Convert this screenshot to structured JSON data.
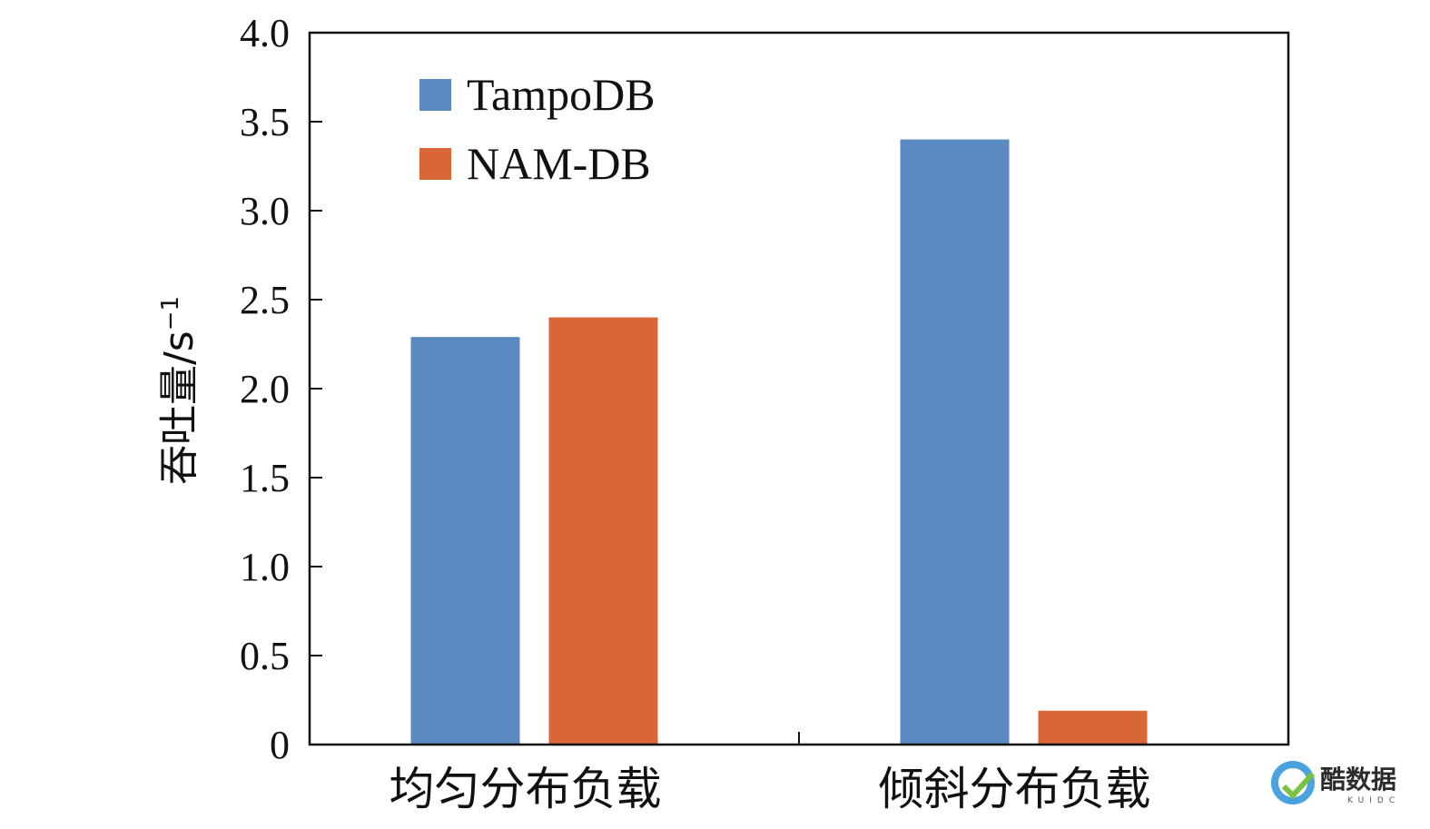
{
  "chart_data": {
    "type": "bar",
    "categories": [
      "均匀分布负载",
      "倾斜分布负载"
    ],
    "series": [
      {
        "name": "TampoDB",
        "color": "#5b8ac0",
        "values": [
          2.29,
          3.4
        ]
      },
      {
        "name": "NAM-DB",
        "color": "#d96636",
        "values": [
          2.4,
          0.19
        ]
      }
    ],
    "ylabel": "吞吐量/s",
    "ylabel_sup": "−1",
    "ylim": [
      0,
      4.0
    ],
    "yticks": [
      {
        "value": 0,
        "label": "0"
      },
      {
        "value": 0.5,
        "label": "0.5"
      },
      {
        "value": 1.0,
        "label": "1.0"
      },
      {
        "value": 1.5,
        "label": "1.5"
      },
      {
        "value": 2.0,
        "label": "2.0"
      },
      {
        "value": 2.5,
        "label": "2.5"
      },
      {
        "value": 3.0,
        "label": "3.0"
      },
      {
        "value": 3.5,
        "label": "3.5"
      },
      {
        "value": 4.0,
        "label": "4.0"
      }
    ],
    "grid": false,
    "legend_position": "top-left"
  },
  "watermark": {
    "text": "酷数据",
    "sub": "KUIDC",
    "logo_color": "#4aa3df"
  }
}
